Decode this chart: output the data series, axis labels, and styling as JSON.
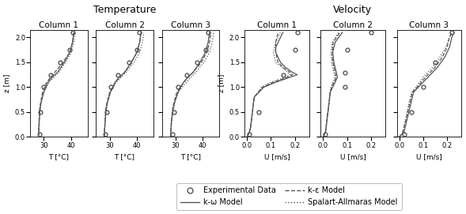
{
  "title_temp": "Temperature",
  "title_vel": "Velocity",
  "col_titles": [
    "Column 1",
    "Column 2",
    "Column 3"
  ],
  "ylabel": "z [m]",
  "xlabel_temp": "T [°C]",
  "xlabel_vel": "U [m/s]",
  "zlim": [
    0,
    2.15
  ],
  "zticks": [
    0,
    0.5,
    1.0,
    1.5,
    2.0
  ],
  "temp_xlim": [
    25,
    46
  ],
  "temp_xticks": [
    30,
    40
  ],
  "vel_xlim": [
    -0.01,
    0.26
  ],
  "vel_xticks": [
    0,
    0.1,
    0.2
  ],
  "temp_exp": {
    "col1": {
      "z": [
        0.05,
        0.5,
        1.0,
        1.25,
        1.5,
        1.75,
        2.1
      ],
      "T": [
        28.5,
        28.8,
        30.0,
        32.5,
        36.0,
        39.5,
        40.5
      ]
    },
    "col2": {
      "z": [
        0.05,
        0.5,
        1.0,
        1.25,
        1.5,
        1.75,
        2.1
      ],
      "T": [
        28.5,
        29.0,
        30.5,
        33.0,
        37.0,
        40.0,
        41.0
      ]
    },
    "col3": {
      "z": [
        0.05,
        0.5,
        1.0,
        1.25,
        1.5,
        1.75,
        2.1
      ],
      "T": [
        29.0,
        29.5,
        31.0,
        34.0,
        38.0,
        41.0,
        42.0
      ]
    }
  },
  "temp_komega": {
    "col1": {
      "z": [
        0,
        0.1,
        0.3,
        0.5,
        0.7,
        0.9,
        1.1,
        1.2,
        1.3,
        1.5,
        1.7,
        1.9,
        2.1
      ],
      "T": [
        28.0,
        28.1,
        28.3,
        28.5,
        29.0,
        30.0,
        31.5,
        33.0,
        35.0,
        37.5,
        39.5,
        40.5,
        41.0
      ]
    },
    "col2": {
      "z": [
        0,
        0.1,
        0.3,
        0.5,
        0.7,
        0.9,
        1.1,
        1.2,
        1.3,
        1.5,
        1.7,
        1.9,
        2.1
      ],
      "T": [
        28.0,
        28.1,
        28.3,
        28.6,
        29.2,
        30.3,
        32.0,
        33.5,
        35.5,
        38.0,
        40.0,
        41.0,
        41.5
      ]
    },
    "col3": {
      "z": [
        0,
        0.1,
        0.3,
        0.5,
        0.7,
        0.9,
        1.1,
        1.2,
        1.3,
        1.5,
        1.7,
        1.9,
        2.1
      ],
      "T": [
        28.2,
        28.3,
        28.5,
        29.0,
        29.7,
        31.0,
        33.0,
        34.5,
        36.5,
        39.0,
        41.0,
        42.0,
        42.5
      ]
    }
  },
  "temp_kepsilon": {
    "col1": {
      "z": [
        0,
        0.3,
        0.6,
        0.9,
        1.1,
        1.3,
        1.5,
        1.7,
        1.9,
        2.1
      ],
      "T": [
        28.0,
        28.2,
        28.5,
        29.5,
        31.0,
        34.0,
        37.0,
        39.5,
        40.5,
        41.0
      ]
    },
    "col2": {
      "z": [
        0,
        0.3,
        0.6,
        0.9,
        1.1,
        1.3,
        1.5,
        1.7,
        1.9,
        2.1
      ],
      "T": [
        28.0,
        28.3,
        28.6,
        30.0,
        32.0,
        35.5,
        38.0,
        40.0,
        41.0,
        41.5
      ]
    },
    "col3": {
      "z": [
        0,
        0.3,
        0.6,
        0.9,
        1.1,
        1.3,
        1.5,
        1.7,
        1.9,
        2.1
      ],
      "T": [
        28.2,
        28.5,
        29.0,
        30.5,
        33.0,
        36.5,
        39.5,
        41.5,
        42.5,
        43.0
      ]
    }
  },
  "temp_spalart": {
    "col1": {
      "z": [
        0,
        0.3,
        0.6,
        0.9,
        1.1,
        1.3,
        1.5,
        1.7,
        1.9,
        2.1
      ],
      "T": [
        28.0,
        28.2,
        28.5,
        29.8,
        32.0,
        35.5,
        38.0,
        40.0,
        41.0,
        41.5
      ]
    },
    "col2": {
      "z": [
        0,
        0.3,
        0.6,
        0.9,
        1.1,
        1.3,
        1.5,
        1.7,
        1.9,
        2.1
      ],
      "T": [
        28.0,
        28.3,
        28.7,
        30.3,
        32.5,
        36.0,
        39.0,
        41.0,
        42.0,
        42.5
      ]
    },
    "col3": {
      "z": [
        0,
        0.3,
        0.6,
        0.9,
        1.1,
        1.3,
        1.5,
        1.7,
        1.9,
        2.1
      ],
      "T": [
        28.2,
        28.6,
        29.2,
        31.0,
        34.0,
        37.5,
        40.5,
        42.5,
        43.5,
        44.0
      ]
    }
  },
  "vel_exp": {
    "col1": {
      "z": [
        0.05,
        0.5,
        1.25,
        1.75,
        2.1
      ],
      "U": [
        0.01,
        0.05,
        0.15,
        0.2,
        0.21
      ]
    },
    "col2": {
      "z": [
        0.05,
        1.0,
        1.3,
        1.75,
        2.1
      ],
      "U": [
        0.01,
        0.09,
        0.09,
        0.1,
        0.2
      ]
    },
    "col3": {
      "z": [
        0.05,
        0.5,
        1.0,
        1.5,
        2.1
      ],
      "U": [
        0.02,
        0.05,
        0.1,
        0.15,
        0.22
      ]
    }
  },
  "vel_komega": {
    "col1": {
      "z": [
        0,
        0.05,
        0.1,
        0.2,
        0.4,
        0.6,
        0.8,
        1.0,
        1.1,
        1.2,
        1.25,
        1.3,
        1.4,
        1.5,
        1.6,
        1.7,
        1.8,
        1.9,
        2.0,
        2.1
      ],
      "U": [
        0.0,
        0.005,
        0.01,
        0.015,
        0.02,
        0.025,
        0.03,
        0.07,
        0.12,
        0.18,
        0.21,
        0.19,
        0.16,
        0.14,
        0.13,
        0.12,
        0.12,
        0.13,
        0.14,
        0.15
      ]
    },
    "col2": {
      "z": [
        0,
        0.05,
        0.1,
        0.3,
        0.5,
        0.7,
        0.9,
        1.0,
        1.1,
        1.2,
        1.3,
        1.5,
        1.7,
        1.9,
        2.1
      ],
      "U": [
        0.0,
        0.005,
        0.01,
        0.015,
        0.02,
        0.025,
        0.03,
        0.04,
        0.05,
        0.06,
        0.055,
        0.045,
        0.04,
        0.05,
        0.08
      ]
    },
    "col3": {
      "z": [
        0,
        0.05,
        0.1,
        0.3,
        0.5,
        0.7,
        0.9,
        1.0,
        1.2,
        1.4,
        1.6,
        1.8,
        2.0,
        2.1
      ],
      "U": [
        0.0,
        0.01,
        0.02,
        0.03,
        0.04,
        0.05,
        0.06,
        0.08,
        0.12,
        0.16,
        0.19,
        0.21,
        0.22,
        0.23
      ]
    }
  },
  "vel_kepsilon": {
    "col1": {
      "z": [
        0,
        0.05,
        0.1,
        0.2,
        0.4,
        0.6,
        0.8,
        1.0,
        1.1,
        1.2,
        1.25,
        1.3,
        1.4,
        1.5,
        1.7,
        1.9,
        2.1
      ],
      "U": [
        0.0,
        0.005,
        0.01,
        0.015,
        0.02,
        0.025,
        0.03,
        0.065,
        0.11,
        0.17,
        0.19,
        0.18,
        0.15,
        0.13,
        0.12,
        0.12,
        0.13
      ]
    },
    "col2": {
      "z": [
        0,
        0.05,
        0.1,
        0.3,
        0.5,
        0.7,
        0.9,
        1.0,
        1.1,
        1.2,
        1.3,
        1.5,
        1.7,
        1.9,
        2.1
      ],
      "U": [
        0.0,
        0.005,
        0.01,
        0.015,
        0.02,
        0.025,
        0.03,
        0.035,
        0.045,
        0.055,
        0.05,
        0.04,
        0.038,
        0.042,
        0.07
      ]
    },
    "col3": {
      "z": [
        0,
        0.05,
        0.1,
        0.3,
        0.5,
        0.7,
        0.9,
        1.0,
        1.2,
        1.4,
        1.6,
        1.8,
        2.0,
        2.1
      ],
      "U": [
        0.0,
        0.01,
        0.015,
        0.025,
        0.035,
        0.045,
        0.055,
        0.075,
        0.11,
        0.15,
        0.18,
        0.2,
        0.21,
        0.22
      ]
    }
  },
  "vel_spalart": {
    "col1": {
      "z": [
        0,
        0.05,
        0.1,
        0.2,
        0.4,
        0.6,
        0.8,
        1.0,
        1.1,
        1.2,
        1.25,
        1.3,
        1.5,
        1.7,
        1.9,
        2.1
      ],
      "U": [
        0.0,
        0.005,
        0.01,
        0.015,
        0.02,
        0.025,
        0.03,
        0.06,
        0.1,
        0.16,
        0.18,
        0.17,
        0.12,
        0.11,
        0.12,
        0.14
      ]
    },
    "col2": {
      "z": [
        0,
        0.05,
        0.1,
        0.3,
        0.5,
        0.7,
        0.9,
        1.0,
        1.1,
        1.2,
        1.3,
        1.5,
        1.7,
        1.9,
        2.1
      ],
      "U": [
        0.0,
        0.005,
        0.01,
        0.015,
        0.02,
        0.025,
        0.028,
        0.033,
        0.04,
        0.05,
        0.045,
        0.035,
        0.033,
        0.038,
        0.065
      ]
    },
    "col3": {
      "z": [
        0,
        0.05,
        0.1,
        0.3,
        0.5,
        0.7,
        0.9,
        1.0,
        1.2,
        1.4,
        1.6,
        1.8,
        2.0,
        2.1
      ],
      "U": [
        0.0,
        0.01,
        0.015,
        0.025,
        0.033,
        0.042,
        0.052,
        0.07,
        0.1,
        0.14,
        0.17,
        0.195,
        0.21,
        0.22
      ]
    }
  },
  "legend_entries": [
    "Experimental Data",
    "k-ω Model",
    "k-ε Model",
    "Spalart-Allmaras Model"
  ],
  "line_color": "#555555"
}
